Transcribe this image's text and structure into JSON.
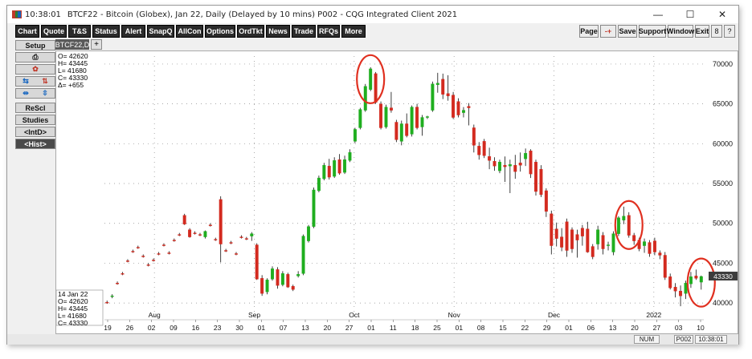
{
  "window": {
    "time": "10:38:01",
    "title": "BTCF22 - Bitcoin (Globex), Jan 22, Daily (Delayed by 10 mins)   P002 - CQG Integrated Client 2021",
    "minimize": "—",
    "maximize": "☐",
    "close": "✕"
  },
  "toolbar": {
    "left": [
      "Chart",
      "Quote",
      "T&S",
      "Status",
      "Alert",
      "SnapQ",
      "AllCon",
      "Options",
      "OrdTkt",
      "News",
      "Trade",
      "RFQs",
      "More"
    ],
    "right": [
      "Page",
      "-+",
      "Save",
      "Support",
      "Window",
      "Exit",
      "8",
      "?"
    ]
  },
  "sidebar": {
    "setup": "Setup",
    "rescl": "ReScl",
    "studies": "Studies",
    "intd": "<IntD>",
    "hist": "<Hist>"
  },
  "symbol_tab": {
    "label": "BTCF22,D",
    "add": "+"
  },
  "ohlc_top": [
    "O=   42620",
    "H=   43445",
    "L=   41680",
    "C=   43330",
    "Δ=    +655"
  ],
  "ohlc_bottom": [
    "14  Jan  22",
    "O=   42620",
    "H=   43445",
    "L=   41680",
    "C=   43330"
  ],
  "last_price_label": "43330",
  "status": {
    "num": "NUM",
    "page": "P002",
    "time": "10:38:01"
  },
  "colors": {
    "up": "#1fae1f",
    "down": "#d32a1f",
    "circle": "#e03020",
    "tag": "#3c3c3c"
  },
  "chart_data": {
    "type": "candlestick",
    "y_ticks": [
      40000,
      45000,
      50000,
      55000,
      60000,
      65000,
      70000
    ],
    "ylim": [
      38000,
      71000
    ],
    "month_labels": [
      "Aug",
      "Sep",
      "Oct",
      "Nov",
      "Dec",
      "2022"
    ],
    "day_labels": [
      "19",
      "26",
      "02",
      "09",
      "16",
      "23",
      "30",
      "01",
      "07",
      "13",
      "20",
      "27",
      "01",
      "11",
      "18",
      "25",
      "01",
      "08",
      "15",
      "22",
      "29",
      "01",
      "06",
      "13",
      "20",
      "27",
      "03",
      "10"
    ],
    "candles": [
      {
        "o": 40100,
        "h": 40300,
        "l": 39900,
        "c": 40000
      },
      {
        "o": 40800,
        "h": 41100,
        "l": 40600,
        "c": 40900
      },
      {
        "o": 42500,
        "h": 42700,
        "l": 42300,
        "c": 42400
      },
      {
        "o": 43700,
        "h": 43900,
        "l": 43500,
        "c": 43600
      },
      {
        "o": 45300,
        "h": 45500,
        "l": 45100,
        "c": 45200
      },
      {
        "o": 46500,
        "h": 46700,
        "l": 46300,
        "c": 46400
      },
      {
        "o": 47000,
        "h": 47200,
        "l": 46800,
        "c": 46900
      },
      {
        "o": 45900,
        "h": 46100,
        "l": 45700,
        "c": 45800
      },
      {
        "o": 44800,
        "h": 45000,
        "l": 44600,
        "c": 44700
      },
      {
        "o": 45400,
        "h": 45600,
        "l": 45200,
        "c": 45300
      },
      {
        "o": 46200,
        "h": 46400,
        "l": 46000,
        "c": 46100
      },
      {
        "o": 47300,
        "h": 47500,
        "l": 47100,
        "c": 47200
      },
      {
        "o": 46300,
        "h": 46500,
        "l": 46100,
        "c": 46200
      },
      {
        "o": 47900,
        "h": 48100,
        "l": 47700,
        "c": 47800
      },
      {
        "o": 48600,
        "h": 48800,
        "l": 48400,
        "c": 48500
      },
      {
        "o": 51000,
        "h": 51200,
        "l": 49800,
        "c": 49900
      },
      {
        "o": 49200,
        "h": 49400,
        "l": 48200,
        "c": 48300
      },
      {
        "o": 48800,
        "h": 49000,
        "l": 48600,
        "c": 48700
      },
      {
        "o": 48600,
        "h": 48800,
        "l": 48400,
        "c": 48500
      },
      {
        "o": 48300,
        "h": 49100,
        "l": 48100,
        "c": 49000
      },
      {
        "o": 49800,
        "h": 50000,
        "l": 49600,
        "c": 49700
      },
      {
        "o": 48000,
        "h": 48200,
        "l": 47800,
        "c": 47900
      },
      {
        "o": 53000,
        "h": 53400,
        "l": 45100,
        "c": 47400
      },
      {
        "o": 46600,
        "h": 46800,
        "l": 46400,
        "c": 46500
      },
      {
        "o": 47600,
        "h": 47800,
        "l": 47400,
        "c": 47500
      },
      {
        "o": 46200,
        "h": 46400,
        "l": 46000,
        "c": 46100
      },
      {
        "o": 48300,
        "h": 48500,
        "l": 48100,
        "c": 48200
      },
      {
        "o": 48100,
        "h": 48300,
        "l": 47900,
        "c": 48000
      },
      {
        "o": 48400,
        "h": 48900,
        "l": 47800,
        "c": 48700
      },
      {
        "o": 47300,
        "h": 47500,
        "l": 42900,
        "c": 43000
      },
      {
        "o": 43100,
        "h": 43500,
        "l": 40900,
        "c": 41200
      },
      {
        "o": 41400,
        "h": 43100,
        "l": 41100,
        "c": 42900
      },
      {
        "o": 43000,
        "h": 44600,
        "l": 42800,
        "c": 44300
      },
      {
        "o": 44200,
        "h": 44500,
        "l": 41800,
        "c": 42200
      },
      {
        "o": 42300,
        "h": 44000,
        "l": 42100,
        "c": 43700
      },
      {
        "o": 43600,
        "h": 43800,
        "l": 41900,
        "c": 42000
      },
      {
        "o": 42100,
        "h": 42300,
        "l": 41500,
        "c": 41700
      },
      {
        "o": 43400,
        "h": 44000,
        "l": 43200,
        "c": 43600
      },
      {
        "o": 43700,
        "h": 48600,
        "l": 43500,
        "c": 48400
      },
      {
        "o": 47800,
        "h": 49800,
        "l": 47600,
        "c": 49600
      },
      {
        "o": 49600,
        "h": 54500,
        "l": 49400,
        "c": 54200
      },
      {
        "o": 54100,
        "h": 56000,
        "l": 53900,
        "c": 55700
      },
      {
        "o": 55600,
        "h": 57600,
        "l": 55400,
        "c": 57300
      },
      {
        "o": 57200,
        "h": 58100,
        "l": 55500,
        "c": 55800
      },
      {
        "o": 55900,
        "h": 58300,
        "l": 55700,
        "c": 57900
      },
      {
        "o": 58000,
        "h": 58700,
        "l": 56100,
        "c": 56300
      },
      {
        "o": 56400,
        "h": 58500,
        "l": 56200,
        "c": 58000
      },
      {
        "o": 57900,
        "h": 59300,
        "l": 57700,
        "c": 58900
      },
      {
        "o": 60300,
        "h": 62000,
        "l": 60100,
        "c": 61800
      },
      {
        "o": 62000,
        "h": 64500,
        "l": 61800,
        "c": 64300
      },
      {
        "o": 64200,
        "h": 67500,
        "l": 64000,
        "c": 67200
      },
      {
        "o": 66800,
        "h": 69600,
        "l": 66600,
        "c": 69400
      },
      {
        "o": 68800,
        "h": 69000,
        "l": 65000,
        "c": 65200
      },
      {
        "o": 65000,
        "h": 65300,
        "l": 61800,
        "c": 62000
      },
      {
        "o": 62100,
        "h": 64900,
        "l": 61900,
        "c": 64600
      },
      {
        "o": 64500,
        "h": 66500,
        "l": 63900,
        "c": 64200
      },
      {
        "o": 62700,
        "h": 63000,
        "l": 60200,
        "c": 60500
      },
      {
        "o": 60300,
        "h": 62900,
        "l": 59800,
        "c": 62500
      },
      {
        "o": 62500,
        "h": 63800,
        "l": 60800,
        "c": 61000
      },
      {
        "o": 61200,
        "h": 64800,
        "l": 60900,
        "c": 64600
      },
      {
        "o": 64600,
        "h": 65000,
        "l": 61800,
        "c": 62000
      },
      {
        "o": 62100,
        "h": 63600,
        "l": 61000,
        "c": 63300
      },
      {
        "o": 63300,
        "h": 63500,
        "l": 63100,
        "c": 63400
      },
      {
        "o": 64200,
        "h": 67800,
        "l": 64000,
        "c": 67500
      },
      {
        "o": 67400,
        "h": 68900,
        "l": 66400,
        "c": 67600
      },
      {
        "o": 68100,
        "h": 68800,
        "l": 65600,
        "c": 66200
      },
      {
        "o": 66300,
        "h": 68600,
        "l": 65400,
        "c": 66000
      },
      {
        "o": 66100,
        "h": 66500,
        "l": 63100,
        "c": 63300
      },
      {
        "o": 65300,
        "h": 65700,
        "l": 63300,
        "c": 63600
      },
      {
        "o": 63900,
        "h": 64600,
        "l": 63300,
        "c": 64200
      },
      {
        "o": 64700,
        "h": 65100,
        "l": 62300,
        "c": 64500
      },
      {
        "o": 62000,
        "h": 62400,
        "l": 58900,
        "c": 59800
      },
      {
        "o": 59700,
        "h": 60200,
        "l": 58000,
        "c": 58600
      },
      {
        "o": 60300,
        "h": 60600,
        "l": 58200,
        "c": 58500
      },
      {
        "o": 58400,
        "h": 59500,
        "l": 56800,
        "c": 57900
      },
      {
        "o": 57800,
        "h": 58300,
        "l": 56600,
        "c": 57200
      },
      {
        "o": 56600,
        "h": 58000,
        "l": 56300,
        "c": 57700
      },
      {
        "o": 57300,
        "h": 58400,
        "l": 55200,
        "c": 57100
      },
      {
        "o": 57200,
        "h": 58000,
        "l": 53800,
        "c": 57400
      },
      {
        "o": 57300,
        "h": 58600,
        "l": 55600,
        "c": 56500
      },
      {
        "o": 57600,
        "h": 58900,
        "l": 56500,
        "c": 57300
      },
      {
        "o": 58100,
        "h": 59400,
        "l": 57200,
        "c": 58800
      },
      {
        "o": 59100,
        "h": 59300,
        "l": 55700,
        "c": 56200
      },
      {
        "o": 57700,
        "h": 58000,
        "l": 53500,
        "c": 54000
      },
      {
        "o": 56800,
        "h": 57300,
        "l": 53300,
        "c": 53600
      },
      {
        "o": 54100,
        "h": 54400,
        "l": 50800,
        "c": 51500
      },
      {
        "o": 51200,
        "h": 51600,
        "l": 46100,
        "c": 47200
      },
      {
        "o": 49300,
        "h": 50100,
        "l": 47100,
        "c": 48100
      },
      {
        "o": 48300,
        "h": 49400,
        "l": 46500,
        "c": 47000
      },
      {
        "o": 50200,
        "h": 50600,
        "l": 45800,
        "c": 46600
      },
      {
        "o": 49200,
        "h": 49500,
        "l": 46300,
        "c": 46800
      },
      {
        "o": 48600,
        "h": 49200,
        "l": 45700,
        "c": 47900
      },
      {
        "o": 49400,
        "h": 49800,
        "l": 47200,
        "c": 48400
      },
      {
        "o": 49300,
        "h": 50200,
        "l": 46300,
        "c": 46400
      },
      {
        "o": 47100,
        "h": 47400,
        "l": 45500,
        "c": 45800
      },
      {
        "o": 47400,
        "h": 49700,
        "l": 46700,
        "c": 49200
      },
      {
        "o": 48500,
        "h": 48900,
        "l": 46100,
        "c": 46800
      },
      {
        "o": 47300,
        "h": 47700,
        "l": 46600,
        "c": 47300
      },
      {
        "o": 46400,
        "h": 49000,
        "l": 46000,
        "c": 48700
      },
      {
        "o": 48700,
        "h": 50900,
        "l": 48400,
        "c": 50700
      },
      {
        "o": 50400,
        "h": 52100,
        "l": 49900,
        "c": 50900
      },
      {
        "o": 51000,
        "h": 51400,
        "l": 48200,
        "c": 48500
      },
      {
        "o": 48500,
        "h": 48800,
        "l": 47300,
        "c": 47800
      },
      {
        "o": 47900,
        "h": 48200,
        "l": 46500,
        "c": 46800
      },
      {
        "o": 47200,
        "h": 48100,
        "l": 46300,
        "c": 47700
      },
      {
        "o": 47600,
        "h": 47900,
        "l": 45800,
        "c": 46200
      },
      {
        "o": 47800,
        "h": 48200,
        "l": 46000,
        "c": 46400
      },
      {
        "o": 46300,
        "h": 46600,
        "l": 45500,
        "c": 46000
      },
      {
        "o": 46000,
        "h": 46400,
        "l": 42900,
        "c": 43200
      },
      {
        "o": 43300,
        "h": 43700,
        "l": 41700,
        "c": 41900
      },
      {
        "o": 42000,
        "h": 42500,
        "l": 40700,
        "c": 41500
      },
      {
        "o": 41500,
        "h": 42200,
        "l": 39600,
        "c": 40900
      },
      {
        "o": 41200,
        "h": 42800,
        "l": 40500,
        "c": 42500
      },
      {
        "o": 42400,
        "h": 43900,
        "l": 41900,
        "c": 43300
      },
      {
        "o": 43400,
        "h": 44200,
        "l": 42900,
        "c": 43100
      },
      {
        "o": 42620,
        "h": 43445,
        "l": 41680,
        "c": 43330
      }
    ],
    "circles_at_candle": [
      51,
      101,
      115
    ]
  }
}
